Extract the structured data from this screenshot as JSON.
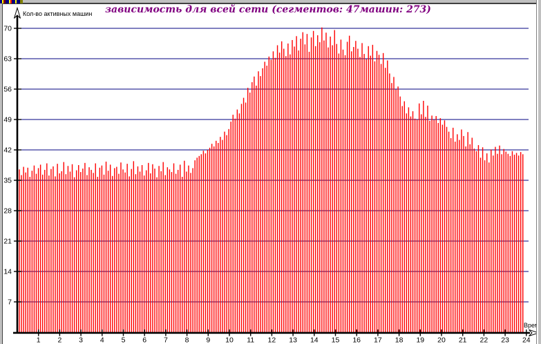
{
  "window": {
    "type": "chart-window-fragment"
  },
  "chart": {
    "title": "зависимость для всей сети (сегментов: 47машин: 273)",
    "y_axis_label": "Кол-во активных машин",
    "x_axis_label": "Время",
    "colors": {
      "title": "#800080",
      "bar": "#ff0000",
      "grid": "#000080",
      "axis": "#000000",
      "frame": "#c0c0c0"
    }
  },
  "chart_data": {
    "type": "bar",
    "title": "зависимость для всей сети (сегментов: 47машин: 273)",
    "ylabel": "Кол-во активных машин",
    "xlabel": "Время",
    "ylim": [
      0,
      72
    ],
    "y_ticks": [
      7,
      14,
      21,
      28,
      35,
      42,
      49,
      56,
      63,
      70
    ],
    "x_ticks": [
      1,
      2,
      3,
      4,
      5,
      6,
      7,
      8,
      9,
      10,
      11,
      12,
      13,
      14,
      15,
      16,
      17,
      18,
      19,
      20,
      21,
      22,
      23,
      24
    ],
    "x_unit": "hour-of-day",
    "sample_interval_hours": 0.1,
    "grid": true,
    "legend": "none",
    "values": [
      37.5,
      36.2,
      38.1,
      36.8,
      37.9,
      35.8,
      37.2,
      38.4,
      36.5,
      37.8,
      38.6,
      36.3,
      37.4,
      38.9,
      36.1,
      37.6,
      38.2,
      35.9,
      38.8,
      36.6,
      37.1,
      39.2,
      36.4,
      38.3,
      37.0,
      38.7,
      35.7,
      37.3,
      38.5,
      36.9,
      37.7,
      39.0,
      36.2,
      38.0,
      37.4,
      36.7,
      38.9,
      35.8,
      37.9,
      38.4,
      36.3,
      39.3,
      37.2,
      38.6,
      36.0,
      37.8,
      38.1,
      36.5,
      39.1,
      37.5,
      36.8,
      38.8,
      35.9,
      37.6,
      39.4,
      36.4,
      38.2,
      37.0,
      38.5,
      36.1,
      37.3,
      39.0,
      36.6,
      38.7,
      37.7,
      35.7,
      38.3,
      37.1,
      39.2,
      36.2,
      38.0,
      37.5,
      36.9,
      38.9,
      36.5,
      37.4,
      38.6,
      35.8,
      39.5,
      37.0,
      38.4,
      36.7,
      37.8,
      39.6,
      40.2,
      40.6,
      41.0,
      41.8,
      41.2,
      42.0,
      42.5,
      43.4,
      42.8,
      44.1,
      43.6,
      45.0,
      44.3,
      46.2,
      45.4,
      46.8,
      48.5,
      50.1,
      49.2,
      51.3,
      50.4,
      52.6,
      54.0,
      52.9,
      56.3,
      55.2,
      57.6,
      58.9,
      56.8,
      60.1,
      59.0,
      60.8,
      62.3,
      61.4,
      63.5,
      62.8,
      64.7,
      63.2,
      66.1,
      64.4,
      67.0,
      65.3,
      63.6,
      66.5,
      64.0,
      67.3,
      65.8,
      68.2,
      64.9,
      67.6,
      69.1,
      66.3,
      68.7,
      64.6,
      67.9,
      69.4,
      65.9,
      68.4,
      66.8,
      70.2,
      67.2,
      69.0,
      65.6,
      68.1,
      66.1,
      69.6,
      66.4,
      64.2,
      67.4,
      65.1,
      63.8,
      66.9,
      68.3,
      64.7,
      65.7,
      67.1,
      65.3,
      63.4,
      66.6,
      64.1,
      62.9,
      65.9,
      63.7,
      66.2,
      62.4,
      64.8,
      63.9,
      61.8,
      64.3,
      60.9,
      62.6,
      59.6,
      57.4,
      58.8,
      55.9,
      56.6,
      54.3,
      52.1,
      53.2,
      50.4,
      51.8,
      49.7,
      50.9,
      49.2,
      49.0,
      52.7,
      50.2,
      53.3,
      49.6,
      52.2,
      48.7,
      49.9,
      48.9,
      49.8,
      48.2,
      49.3,
      47.8,
      48.8,
      47.3,
      46.2,
      44.7,
      47.1,
      43.9,
      45.6,
      44.3,
      46.7,
      45.2,
      42.8,
      46.1,
      43.3,
      44.8,
      42.3,
      41.7,
      43.1,
      40.2,
      42.6,
      39.6,
      41.2,
      39.1,
      42.1,
      40.7,
      42.7,
      41.1,
      43.0,
      41.0,
      42.2,
      41.6,
      41.1,
      40.6,
      41.7,
      40.9,
      41.3,
      40.7,
      41.5,
      41.0
    ]
  }
}
